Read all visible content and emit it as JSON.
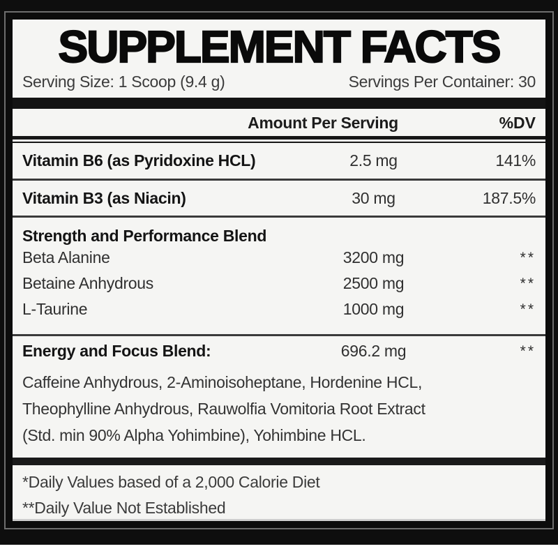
{
  "header": {
    "title": "SUPPLEMENT FACTS",
    "serving_size": "Serving Size: 1 Scoop (9.4 g)",
    "servings_per_container": "Servings Per Container: 30"
  },
  "table": {
    "col_amount": "Amount Per Serving",
    "col_dv": "%DV",
    "vitamins": [
      {
        "name": "Vitamin B6 (as Pyridoxine HCL)",
        "amount": "2.5 mg",
        "dv": "141%"
      },
      {
        "name": "Vitamin B3 (as Niacin)",
        "amount": "30 mg",
        "dv": "187.5%"
      }
    ],
    "strength_blend": {
      "name": "Strength and Performance Blend",
      "items": [
        {
          "name": "Beta Alanine",
          "amount": "3200 mg",
          "dv": "**"
        },
        {
          "name": "Betaine Anhydrous",
          "amount": "2500 mg",
          "dv": "**"
        },
        {
          "name": "L-Taurine",
          "amount": "1000 mg",
          "dv": "**"
        }
      ]
    },
    "energy_blend": {
      "name": "Energy and Focus Blend:",
      "amount": "696.2 mg",
      "dv": "**",
      "ingredients_lines": [
        "Caffeine Anhydrous, 2-Aminoisoheptane, Hordenine HCL,",
        "Theophylline Anhydrous, Rauwolfia Vomitoria Root Extract",
        "(Std. min 90% Alpha Yohimbine), Yohimbine HCL."
      ]
    }
  },
  "footnotes": [
    "*Daily Values based of a 2,000 Calorie Diet",
    "**Daily Value Not Established"
  ],
  "colors": {
    "page_background": "#0e0e0e",
    "label_background": "#f5f5f3",
    "border": "#0c0c0c",
    "text_regular": "#303030",
    "text_bold": "#141414"
  }
}
